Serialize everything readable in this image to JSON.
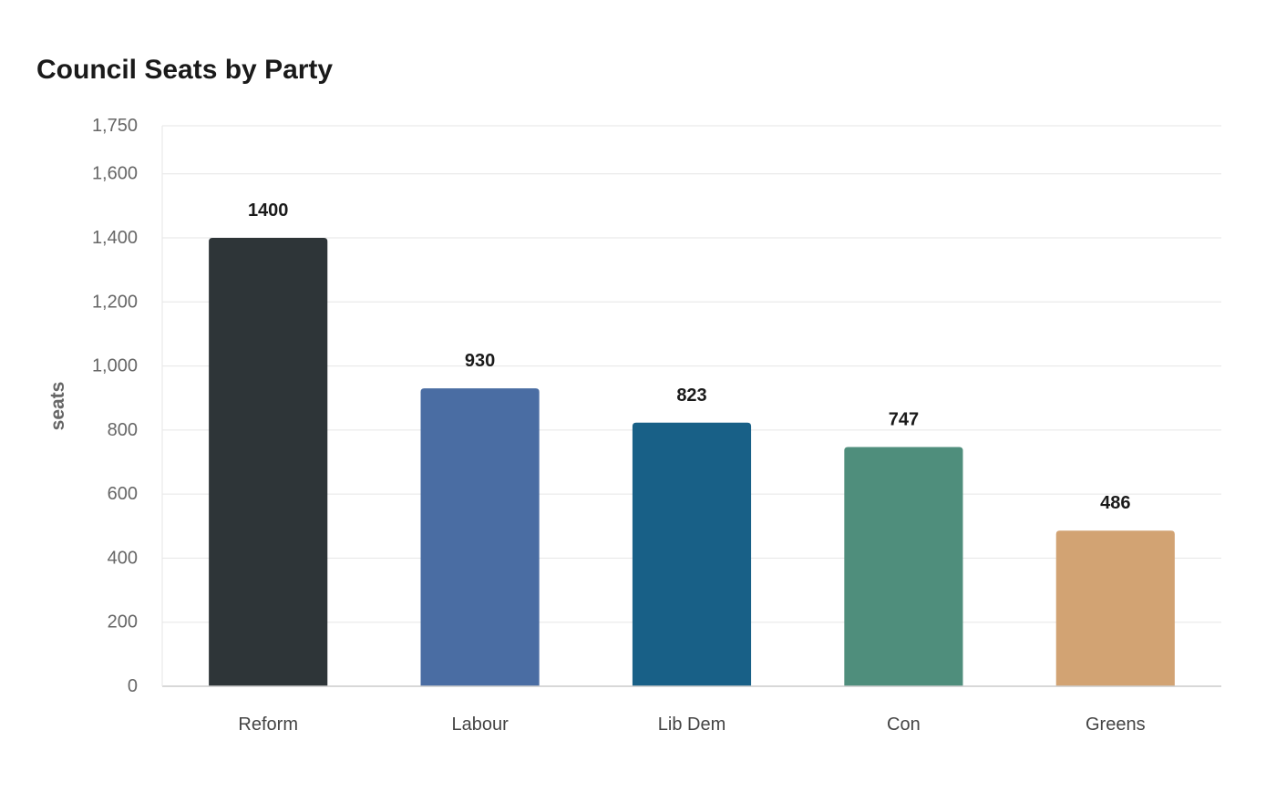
{
  "chart_data": {
    "type": "bar",
    "title": "Council Seats by Party",
    "xlabel": "",
    "ylabel": "seats",
    "categories": [
      "Reform",
      "Labour",
      "Lib Dem",
      "Con",
      "Greens"
    ],
    "values": [
      1400,
      930,
      823,
      747,
      486
    ],
    "colors": [
      "#2e3538",
      "#4a6da3",
      "#186087",
      "#4f8e7c",
      "#d2a373"
    ],
    "ylim": [
      0,
      1750
    ],
    "yticks": [
      0,
      200,
      400,
      600,
      800,
      1000,
      1200,
      1400,
      1600,
      1750
    ],
    "ytick_labels": [
      "0",
      "200",
      "400",
      "600",
      "800",
      "1,000",
      "1,200",
      "1,400",
      "1,600",
      "1,750"
    ],
    "grid": true,
    "legend": "none",
    "data_labels": true
  }
}
